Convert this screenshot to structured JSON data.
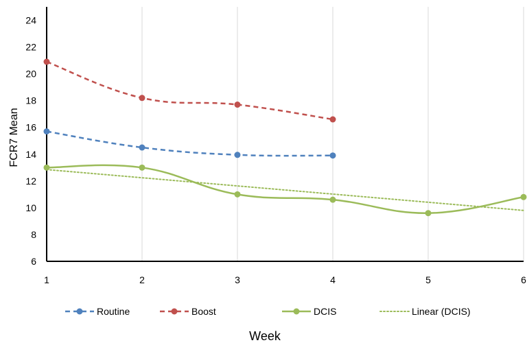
{
  "chart_data": {
    "type": "line",
    "xlabel": "Week",
    "ylabel": "FCR7  Mean",
    "xlim": [
      1,
      6
    ],
    "ylim": [
      6,
      25
    ],
    "x_ticks": [
      1,
      2,
      3,
      4,
      5,
      6
    ],
    "y_ticks": [
      6,
      8,
      10,
      12,
      14,
      16,
      18,
      20,
      22,
      24
    ],
    "grid": "vertical",
    "legend_placement": "bottom",
    "series": [
      {
        "name": "Routine",
        "color": "#4F81BD",
        "style": "dashed",
        "marker": "circle",
        "smooth": true,
        "x": [
          1,
          2,
          3,
          4
        ],
        "values": [
          15.7,
          14.5,
          13.95,
          13.9
        ]
      },
      {
        "name": "Boost",
        "color": "#C0504D",
        "style": "dashed",
        "marker": "circle",
        "smooth": true,
        "x": [
          1,
          2,
          3,
          4
        ],
        "values": [
          20.9,
          18.2,
          17.7,
          16.6
        ]
      },
      {
        "name": "DCIS",
        "color": "#9BBB59",
        "style": "solid",
        "marker": "circle",
        "smooth": true,
        "x": [
          1,
          2,
          3,
          4,
          5,
          6
        ],
        "values": [
          13.0,
          13.0,
          11.0,
          10.6,
          9.6,
          10.8
        ]
      },
      {
        "name": "Linear (DCIS)",
        "color": "#9BBB59",
        "style": "dotted",
        "marker": "none",
        "smooth": false,
        "x": [
          1,
          6
        ],
        "values": [
          12.85,
          9.8
        ]
      }
    ]
  }
}
